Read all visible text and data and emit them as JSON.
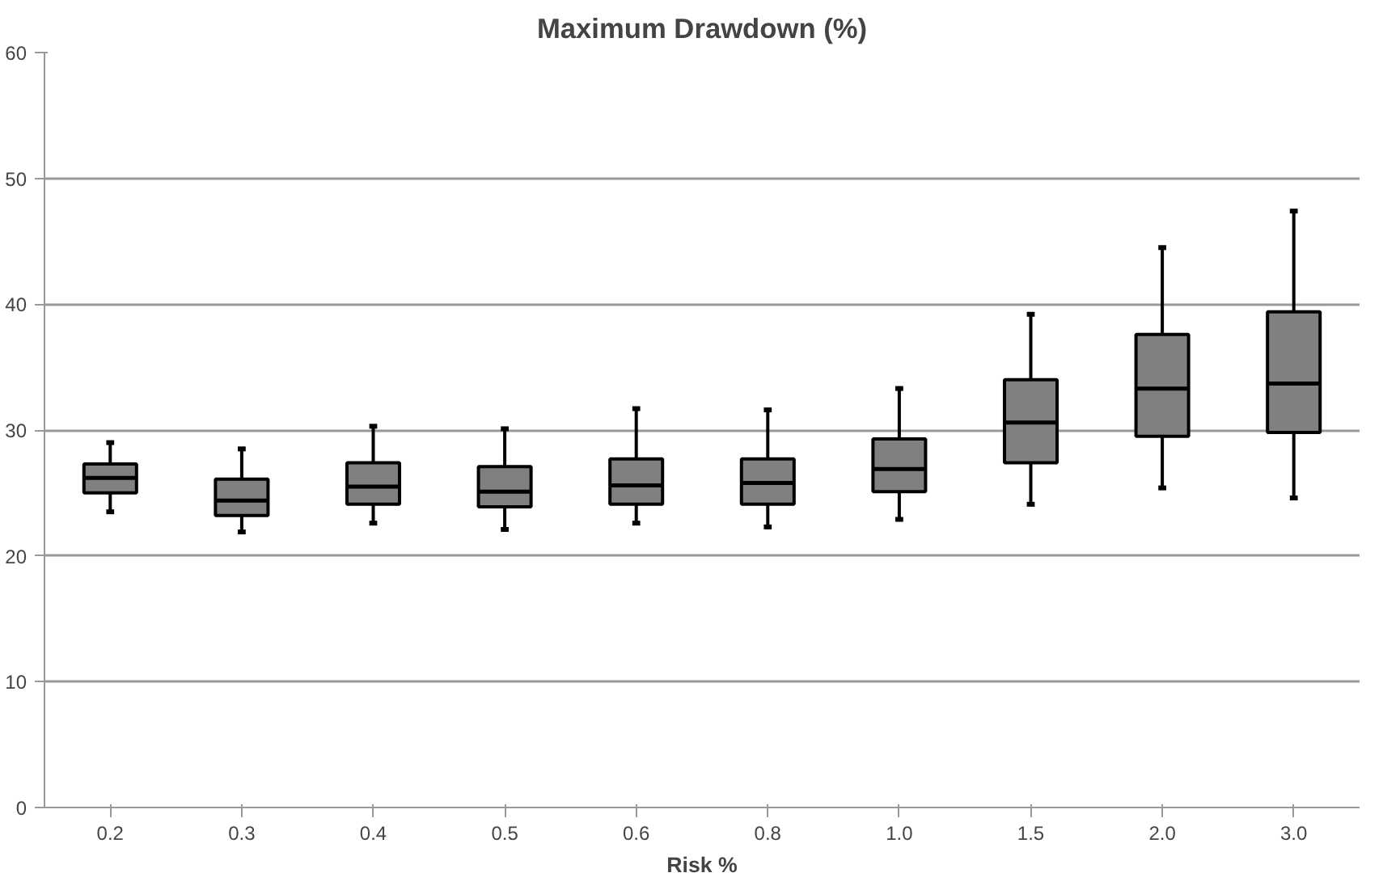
{
  "chart_data": {
    "type": "box",
    "title": "Maximum Drawdown (%)",
    "xlabel": "Risk %",
    "categories": [
      "0.2",
      "0.3",
      "0.4",
      "0.5",
      "0.6",
      "0.8",
      "1.0",
      "1.5",
      "2.0",
      "3.0"
    ],
    "color": "#808080",
    "ylim": [
      0,
      60
    ],
    "yticks": [
      0,
      10,
      20,
      30,
      40,
      50,
      60
    ],
    "grid": "y",
    "boxes": [
      {
        "low": 23.5,
        "q1": 25.0,
        "median": 26.2,
        "q3": 27.3,
        "high": 29.0
      },
      {
        "low": 21.9,
        "q1": 23.2,
        "median": 24.4,
        "q3": 26.1,
        "high": 28.5
      },
      {
        "low": 22.6,
        "q1": 24.1,
        "median": 25.5,
        "q3": 27.4,
        "high": 30.3
      },
      {
        "low": 22.1,
        "q1": 23.9,
        "median": 25.1,
        "q3": 27.1,
        "high": 30.1
      },
      {
        "low": 22.6,
        "q1": 24.1,
        "median": 25.6,
        "q3": 27.7,
        "high": 31.7
      },
      {
        "low": 22.3,
        "q1": 24.1,
        "median": 25.8,
        "q3": 27.7,
        "high": 31.6
      },
      {
        "low": 22.9,
        "q1": 25.1,
        "median": 26.9,
        "q3": 29.3,
        "high": 33.3
      },
      {
        "low": 24.1,
        "q1": 27.4,
        "median": 30.6,
        "q3": 34.0,
        "high": 39.2
      },
      {
        "low": 25.4,
        "q1": 29.5,
        "median": 33.3,
        "q3": 37.6,
        "high": 44.5
      },
      {
        "low": 24.6,
        "q1": 29.8,
        "median": 33.7,
        "q3": 39.4,
        "high": 47.4
      }
    ]
  }
}
